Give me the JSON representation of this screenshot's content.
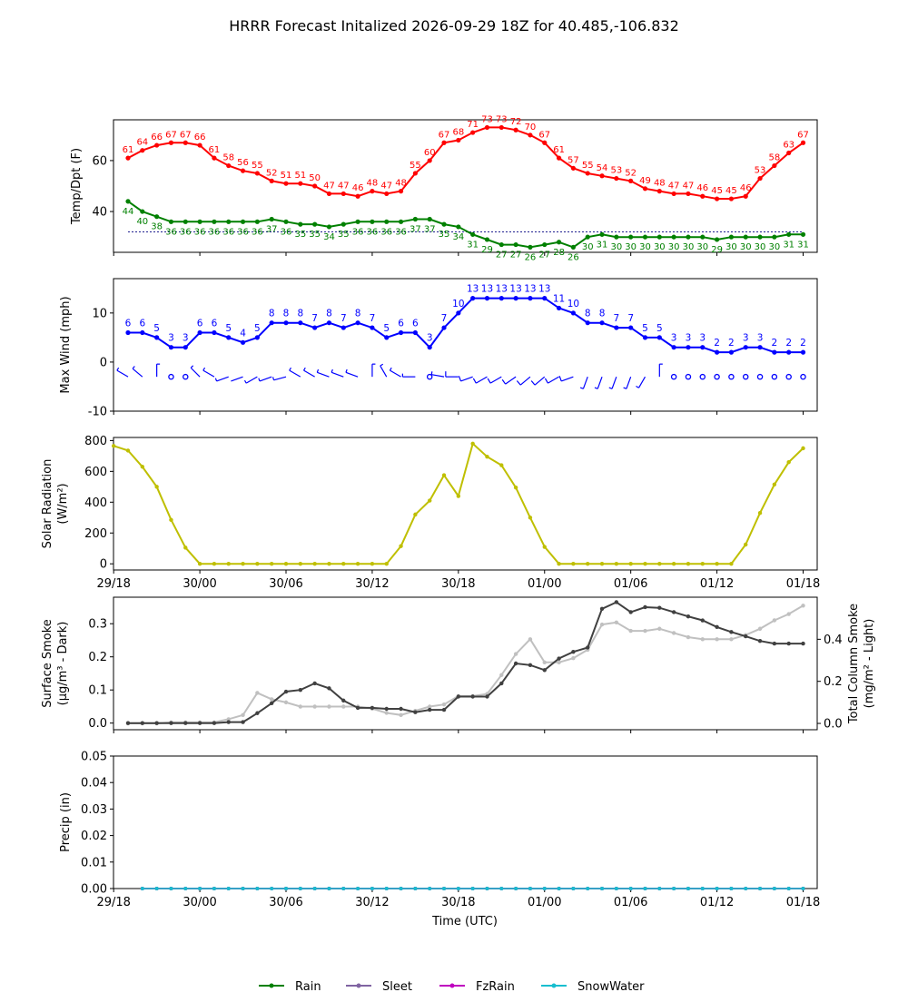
{
  "title": "HRRR Forecast Initalized 2026-09-29 18Z for 40.485,-106.832",
  "xtick_labels": [
    "29/18",
    "30/00",
    "30/06",
    "30/12",
    "30/18",
    "01/00",
    "01/06",
    "01/12",
    "01/18"
  ],
  "xlabel": "Time (UTC)",
  "colors": {
    "temp": "#ff0000",
    "dewpoint": "#008000",
    "wind": "#0000ff",
    "solar": "#bfbf00",
    "smoke_surface": "#404040",
    "smoke_column": "#c0c0c0",
    "rain": "#008000",
    "sleet": "#8064a2",
    "fzrain": "#bf00bf",
    "snowwater": "#17becf"
  },
  "legend": {
    "rain": "Rain",
    "sleet": "Sleet",
    "fzrain": "FzRain",
    "snowwater": "SnowWater"
  },
  "chart_data": [
    {
      "type": "line",
      "panel": "temperature",
      "ylabel": "Temp/Dpt (F)",
      "x_hours": [
        1,
        2,
        3,
        4,
        5,
        6,
        7,
        8,
        9,
        10,
        11,
        12,
        13,
        14,
        15,
        16,
        17,
        18,
        19,
        20,
        21,
        22,
        23,
        24,
        25,
        26,
        27,
        28,
        29,
        30,
        31,
        32,
        33,
        34,
        35,
        36,
        37,
        38,
        39,
        40,
        41,
        42,
        43,
        44,
        45,
        46,
        47,
        48
      ],
      "ylim": [
        24,
        76
      ],
      "yticks": [
        40,
        60
      ],
      "freezing_line": 32,
      "series": [
        {
          "key": "temp",
          "values": [
            61,
            64,
            66,
            67,
            67,
            66,
            61,
            58,
            56,
            55,
            52,
            51,
            51,
            50,
            47,
            47,
            46,
            48,
            47,
            48,
            55,
            60,
            67,
            68,
            71,
            73,
            73,
            72,
            70,
            67,
            61,
            57,
            55,
            54,
            53,
            52,
            49,
            48,
            47,
            47,
            46,
            45,
            45,
            46,
            53,
            58,
            63,
            67
          ]
        },
        {
          "key": "dewpoint",
          "values": [
            44,
            40,
            38,
            36,
            36,
            36,
            36,
            36,
            36,
            36,
            37,
            36,
            35,
            35,
            34,
            35,
            36,
            36,
            36,
            36,
            37,
            37,
            35,
            34,
            31,
            29,
            27,
            27,
            26,
            27,
            28,
            26,
            30,
            31,
            30,
            30,
            30,
            30,
            30,
            30,
            30,
            29,
            30,
            30,
            30,
            30,
            31,
            31
          ]
        }
      ]
    },
    {
      "type": "line",
      "panel": "wind",
      "ylabel": "Max Wind (mph)",
      "x_hours": [
        1,
        2,
        3,
        4,
        5,
        6,
        7,
        8,
        9,
        10,
        11,
        12,
        13,
        14,
        15,
        16,
        17,
        18,
        19,
        20,
        21,
        22,
        23,
        24,
        25,
        26,
        27,
        28,
        29,
        30,
        31,
        32,
        33,
        34,
        35,
        36,
        37,
        38,
        39,
        40,
        41,
        42,
        43,
        44,
        45,
        46,
        47,
        48
      ],
      "ylim": [
        -10,
        17
      ],
      "yticks": [
        -10,
        0,
        10
      ],
      "series": [
        {
          "key": "wind",
          "values": [
            6,
            6,
            5,
            3,
            3,
            6,
            6,
            5,
            4,
            5,
            8,
            8,
            8,
            7,
            8,
            7,
            8,
            7,
            5,
            6,
            6,
            3,
            7,
            10,
            13,
            13,
            13,
            13,
            13,
            13,
            11,
            10,
            8,
            8,
            7,
            7,
            5,
            5,
            3,
            3,
            3,
            2,
            2,
            3,
            3,
            2,
            2,
            2
          ]
        }
      ],
      "wind_barb_dirs_deg": [
        300,
        310,
        0,
        0,
        0,
        315,
        300,
        250,
        250,
        240,
        250,
        255,
        300,
        300,
        290,
        290,
        290,
        0,
        330,
        300,
        270,
        270,
        280,
        270,
        250,
        240,
        240,
        235,
        230,
        230,
        240,
        250,
        200,
        200,
        200,
        200,
        210,
        0,
        0,
        340,
        0,
        0,
        0,
        170,
        0,
        0,
        0,
        0
      ]
    },
    {
      "type": "line",
      "panel": "solar",
      "ylabel": "Solar Radiation",
      "ylabel_units": "(W/m²)",
      "x_hours": [
        0,
        1,
        2,
        3,
        4,
        5,
        6,
        7,
        8,
        9,
        10,
        11,
        12,
        13,
        14,
        15,
        16,
        17,
        18,
        19,
        20,
        21,
        22,
        23,
        24,
        25,
        26,
        27,
        28,
        29,
        30,
        31,
        32,
        33,
        34,
        35,
        36,
        37,
        38,
        39,
        40,
        41,
        42,
        43,
        44,
        45,
        46,
        47,
        48
      ],
      "ylim": [
        -40,
        820
      ],
      "yticks": [
        0,
        200,
        400,
        600,
        800
      ],
      "series": [
        {
          "key": "solar",
          "values": [
            765,
            735,
            630,
            500,
            285,
            105,
            0,
            0,
            0,
            0,
            0,
            0,
            0,
            0,
            0,
            0,
            0,
            0,
            0,
            0,
            115,
            320,
            410,
            575,
            440,
            780,
            695,
            640,
            495,
            300,
            110,
            0,
            0,
            0,
            0,
            0,
            0,
            0,
            0,
            0,
            0,
            0,
            0,
            0,
            125,
            330,
            515,
            660,
            750
          ]
        }
      ]
    },
    {
      "type": "line",
      "panel": "smoke",
      "ylabel": "Surface Smoke",
      "ylabel_units": "(μg/m³ - Dark)",
      "ylabel_right": "Total Column Smoke",
      "ylabel_right_units": "(mg/m² - Light)",
      "x_hours": [
        1,
        2,
        3,
        4,
        5,
        6,
        7,
        8,
        9,
        10,
        11,
        12,
        13,
        14,
        15,
        16,
        17,
        18,
        19,
        20,
        21,
        22,
        23,
        24,
        25,
        26,
        27,
        28,
        29,
        30,
        31,
        32,
        33,
        34,
        35,
        36,
        37,
        38,
        39,
        40,
        41,
        42,
        43,
        44,
        45,
        46,
        47,
        48
      ],
      "ylim": [
        -0.02,
        0.38
      ],
      "yticks": [
        0.0,
        0.1,
        0.2,
        0.3
      ],
      "ylim_right": [
        -0.03,
        0.6
      ],
      "yticks_right": [
        0.0,
        0.2,
        0.4
      ],
      "series": [
        {
          "key": "smoke_column",
          "axis": "right",
          "values": [
            0,
            0,
            0,
            0.005,
            0.005,
            0.005,
            0.005,
            0.02,
            0.04,
            0.145,
            0.115,
            0.1,
            0.08,
            0.08,
            0.08,
            0.08,
            0.08,
            0.07,
            0.05,
            0.04,
            0.06,
            0.08,
            0.09,
            0.13,
            0.13,
            0.14,
            0.23,
            0.33,
            0.4,
            0.29,
            0.29,
            0.31,
            0.35,
            0.47,
            0.48,
            0.44,
            0.44,
            0.45,
            0.43,
            0.41,
            0.4,
            0.4,
            0.4,
            0.42,
            0.45,
            0.49,
            0.52,
            0.56
          ]
        },
        {
          "key": "smoke_surface",
          "axis": "left",
          "values": [
            0,
            0,
            0,
            0,
            0,
            0,
            0,
            0.003,
            0.003,
            0.03,
            0.06,
            0.095,
            0.1,
            0.12,
            0.105,
            0.068,
            0.046,
            0.046,
            0.043,
            0.043,
            0.033,
            0.04,
            0.04,
            0.08,
            0.08,
            0.08,
            0.12,
            0.18,
            0.175,
            0.16,
            0.195,
            0.215,
            0.228,
            0.345,
            0.365,
            0.335,
            0.35,
            0.348,
            0.335,
            0.322,
            0.31,
            0.29,
            0.275,
            0.262,
            0.248,
            0.24,
            0.24,
            0.24
          ]
        }
      ]
    },
    {
      "type": "line",
      "panel": "precip",
      "ylabel": "Precip (in)",
      "x_hours": [
        2,
        3,
        4,
        5,
        6,
        7,
        8,
        9,
        10,
        11,
        12,
        13,
        14,
        15,
        16,
        17,
        18,
        19,
        20,
        21,
        22,
        23,
        24,
        25,
        26,
        27,
        28,
        29,
        30,
        31,
        32,
        33,
        34,
        35,
        36,
        37,
        38,
        39,
        40,
        41,
        42,
        43,
        44,
        45,
        46,
        47,
        48
      ],
      "ylim": [
        0,
        0.05
      ],
      "yticks": [
        0.0,
        0.01,
        0.02,
        0.03,
        0.04,
        0.05
      ],
      "series": [
        {
          "key": "rain",
          "values": [
            0,
            0,
            0,
            0,
            0,
            0,
            0,
            0,
            0,
            0,
            0,
            0,
            0,
            0,
            0,
            0,
            0,
            0,
            0,
            0,
            0,
            0,
            0,
            0,
            0,
            0,
            0,
            0,
            0,
            0,
            0,
            0,
            0,
            0,
            0,
            0,
            0,
            0,
            0,
            0,
            0,
            0,
            0,
            0,
            0,
            0,
            0
          ]
        },
        {
          "key": "sleet",
          "values": [
            0,
            0,
            0,
            0,
            0,
            0,
            0,
            0,
            0,
            0,
            0,
            0,
            0,
            0,
            0,
            0,
            0,
            0,
            0,
            0,
            0,
            0,
            0,
            0,
            0,
            0,
            0,
            0,
            0,
            0,
            0,
            0,
            0,
            0,
            0,
            0,
            0,
            0,
            0,
            0,
            0,
            0,
            0,
            0,
            0,
            0,
            0
          ]
        },
        {
          "key": "fzrain",
          "values": [
            0,
            0,
            0,
            0,
            0,
            0,
            0,
            0,
            0,
            0,
            0,
            0,
            0,
            0,
            0,
            0,
            0,
            0,
            0,
            0,
            0,
            0,
            0,
            0,
            0,
            0,
            0,
            0,
            0,
            0,
            0,
            0,
            0,
            0,
            0,
            0,
            0,
            0,
            0,
            0,
            0,
            0,
            0,
            0,
            0,
            0,
            0
          ]
        },
        {
          "key": "snowwater",
          "values": [
            0,
            0,
            0,
            0,
            0,
            0,
            0,
            0,
            0,
            0,
            0,
            0,
            0,
            0,
            0,
            0,
            0,
            0,
            0,
            0,
            0,
            0,
            0,
            0,
            0,
            0,
            0,
            0,
            0,
            0,
            0,
            0,
            0,
            0,
            0,
            0,
            0,
            0,
            0,
            0,
            0,
            0,
            0,
            0,
            0,
            0,
            0
          ]
        }
      ]
    }
  ]
}
